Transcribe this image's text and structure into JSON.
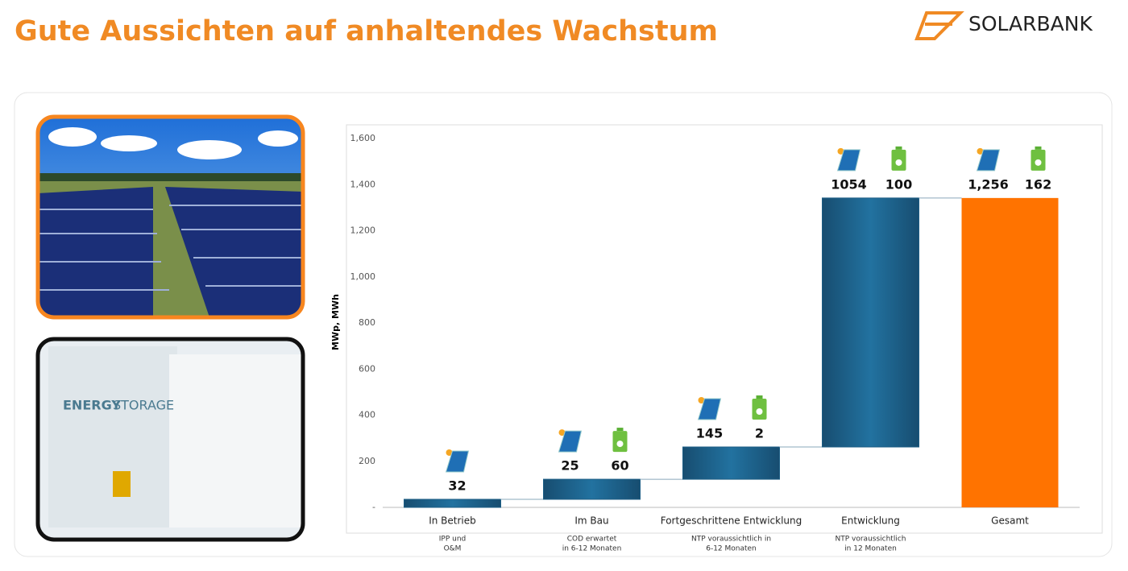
{
  "header": {
    "title": "Gute Aussichten auf anhaltendes Wachstum",
    "logo": "SOLARBANK"
  },
  "images": {
    "storage_text": [
      "ENERGY",
      "STORAGE"
    ]
  },
  "chart_data": {
    "type": "waterfall",
    "y_label": "MWp, MWh",
    "categories": [
      "In Betrieb",
      "Im Bau",
      "Fortgeschrittene Entwicklung",
      "Entwicklung",
      "Gesamt"
    ],
    "sublabels": [
      [
        "IPP und",
        "O&M"
      ],
      [
        "COD erwartet",
        "in 6-12 Monaten"
      ],
      [
        "NTP voraussichtlich in",
        "6-12 Monaten"
      ],
      [
        "NTP voraussichtlich",
        "in 12 Monaten"
      ],
      []
    ],
    "values": [
      35,
      87,
      140,
      1080,
      1342
    ],
    "is_total": [
      false,
      false,
      false,
      false,
      true
    ],
    "color": "#1d5e85",
    "total_color": "#ff7300",
    "solar_mwp": [
      32,
      25,
      145,
      1054,
      1256
    ],
    "solar_value_labels": [
      "32",
      "25",
      "145",
      "1054",
      "1,256"
    ],
    "storage_mwh": [
      null,
      60,
      2,
      100,
      162
    ],
    "ylim": [
      0,
      1600
    ],
    "yticks": [
      {
        "value": 0,
        "label": "-"
      },
      200,
      400,
      600,
      800,
      {
        "value": 1000,
        "label": "1,000"
      },
      {
        "value": 1200,
        "label": "1,200"
      },
      {
        "value": 1400,
        "label": "1,400"
      },
      {
        "value": 1600,
        "label": "1,600"
      }
    ]
  }
}
